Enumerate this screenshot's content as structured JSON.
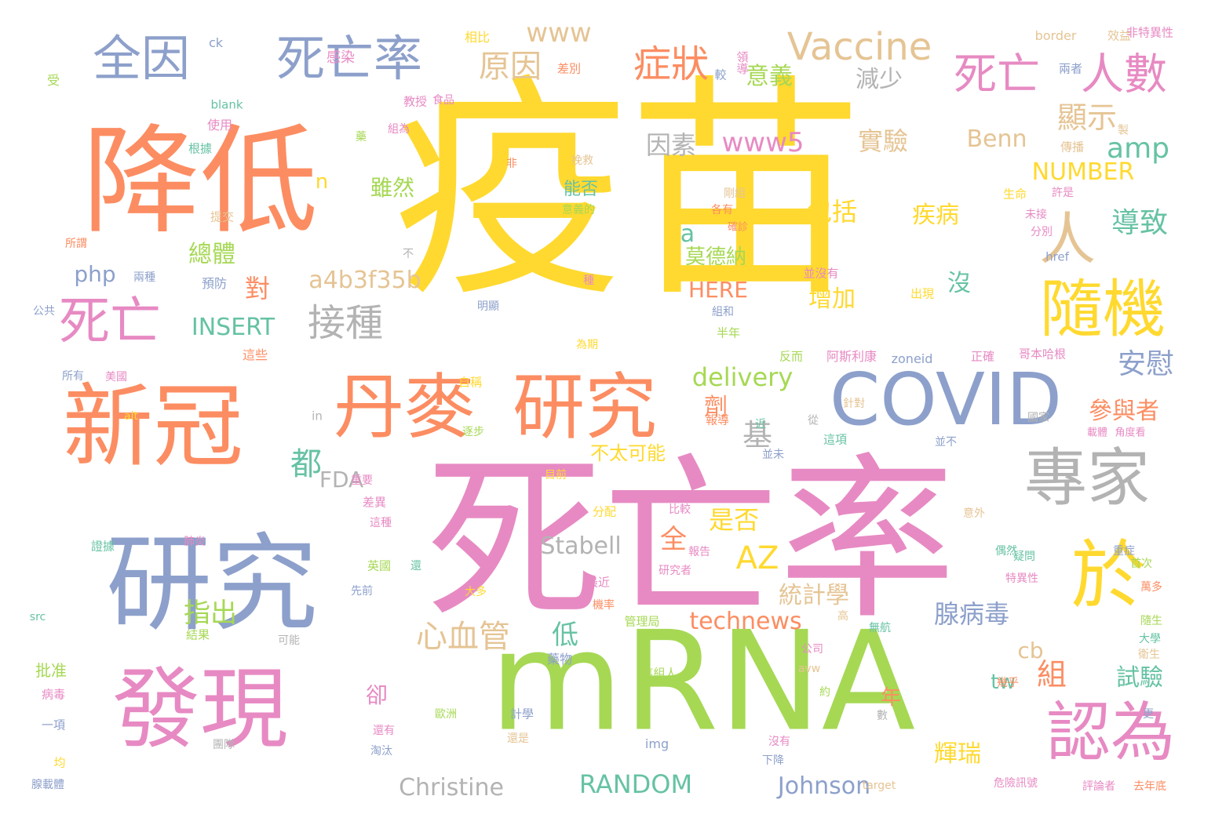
{
  "palette": {
    "yellow": "#FFD92F",
    "green": "#A6D854",
    "pink": "#E78AC3",
    "blue": "#8DA0CB",
    "orange": "#FC8D62",
    "teal": "#66C2A5",
    "tan": "#E5C494",
    "gray": "#B3B3B3"
  },
  "words": [
    {
      "text": "疫苗",
      "color": "yellow"
    },
    {
      "text": "死亡率",
      "color": "pink"
    },
    {
      "text": "mRNA",
      "color": "green"
    },
    {
      "text": "降低",
      "color": "orange"
    },
    {
      "text": "新冠",
      "color": "orange"
    },
    {
      "text": "研究",
      "color": "blue"
    },
    {
      "text": "發現",
      "color": "pink"
    },
    {
      "text": "丹麥",
      "color": "orange"
    },
    {
      "text": "研究",
      "color": "orange"
    },
    {
      "text": "COVID",
      "color": "blue"
    },
    {
      "text": "專家",
      "color": "gray"
    },
    {
      "text": "於",
      "color": "yellow"
    },
    {
      "text": "認為",
      "color": "pink"
    },
    {
      "text": "隨機",
      "color": "yellow"
    },
    {
      "text": "人",
      "color": "tan"
    },
    {
      "text": "全因",
      "color": "blue"
    },
    {
      "text": "死亡率",
      "color": "blue"
    },
    {
      "text": "死亡",
      "color": "pink"
    },
    {
      "text": "死亡",
      "color": "pink"
    },
    {
      "text": "人數",
      "color": "pink"
    },
    {
      "text": "Vaccine",
      "color": "tan"
    },
    {
      "text": "症狀",
      "color": "orange"
    },
    {
      "text": "原因",
      "color": "tan"
    },
    {
      "text": "www",
      "color": "tan"
    },
    {
      "text": "意義",
      "color": "green"
    },
    {
      "text": "減少",
      "color": "gray"
    },
    {
      "text": "顯示",
      "color": "tan"
    },
    {
      "text": "amp",
      "color": "teal"
    },
    {
      "text": "www5",
      "color": "pink"
    },
    {
      "text": "實驗",
      "color": "tan"
    },
    {
      "text": "因素",
      "color": "gray"
    },
    {
      "text": "Benn",
      "color": "tan"
    },
    {
      "text": "NUMBER",
      "color": "yellow"
    },
    {
      "text": "導致",
      "color": "teal"
    },
    {
      "text": "包括",
      "color": "yellow"
    },
    {
      "text": "疾病",
      "color": "yellow"
    },
    {
      "text": "增加",
      "color": "yellow"
    },
    {
      "text": "沒",
      "color": "teal"
    },
    {
      "text": "安慰",
      "color": "blue"
    },
    {
      "text": "參與者",
      "color": "orange"
    },
    {
      "text": "接種",
      "color": "gray"
    },
    {
      "text": "a4b3f35b",
      "color": "tan"
    },
    {
      "text": "對",
      "color": "orange"
    },
    {
      "text": "php",
      "color": "blue"
    },
    {
      "text": "INSERT",
      "color": "teal"
    },
    {
      "text": "總體",
      "color": "green"
    },
    {
      "text": "雖然",
      "color": "green"
    },
    {
      "text": "n",
      "color": "yellow"
    },
    {
      "text": "a",
      "color": "teal"
    },
    {
      "text": "莫德納",
      "color": "green"
    },
    {
      "text": "HERE",
      "color": "orange"
    },
    {
      "text": "delivery",
      "color": "green"
    },
    {
      "text": "劑",
      "color": "orange"
    },
    {
      "text": "基",
      "color": "gray"
    },
    {
      "text": "都",
      "color": "teal"
    },
    {
      "text": "FDA",
      "color": "gray"
    },
    {
      "text": "不太可能",
      "color": "yellow"
    },
    {
      "text": "是否",
      "color": "yellow"
    },
    {
      "text": "AZ",
      "color": "yellow"
    },
    {
      "text": "全",
      "color": "orange"
    },
    {
      "text": "Stabell",
      "color": "gray"
    },
    {
      "text": "統計學",
      "color": "tan"
    },
    {
      "text": "組",
      "color": "orange"
    },
    {
      "text": "腺病毒",
      "color": "blue"
    },
    {
      "text": "試驗",
      "color": "teal"
    },
    {
      "text": "cb",
      "color": "tan"
    },
    {
      "text": "tw",
      "color": "teal"
    },
    {
      "text": "心血管",
      "color": "tan"
    },
    {
      "text": "低",
      "color": "teal"
    },
    {
      "text": "指出",
      "color": "green"
    },
    {
      "text": "technews",
      "color": "orange"
    },
    {
      "text": "卻",
      "color": "pink"
    },
    {
      "text": "年",
      "color": "orange"
    },
    {
      "text": "輝瑞",
      "color": "yellow"
    },
    {
      "text": "Christine",
      "color": "gray"
    },
    {
      "text": "RANDOM",
      "color": "teal"
    },
    {
      "text": "Johnson",
      "color": "blue"
    },
    {
      "text": "能否",
      "color": "teal"
    },
    {
      "text": "ck",
      "color": "blue"
    },
    {
      "text": "感染",
      "color": "pink"
    },
    {
      "text": "受",
      "color": "green"
    },
    {
      "text": "相比",
      "color": "yellow"
    },
    {
      "text": "差別",
      "color": "orange"
    },
    {
      "text": "較",
      "color": "blue"
    },
    {
      "text": "領導",
      "color": "pink"
    },
    {
      "text": "效益",
      "color": "tan"
    },
    {
      "text": "border",
      "color": "tan"
    },
    {
      "text": "非特異性",
      "color": "pink"
    },
    {
      "text": "兩者",
      "color": "blue"
    },
    {
      "text": "blank",
      "color": "teal"
    },
    {
      "text": "教授",
      "color": "pink"
    },
    {
      "text": "食品",
      "color": "pink"
    },
    {
      "text": "使用",
      "color": "pink"
    },
    {
      "text": "組為",
      "color": "pink"
    },
    {
      "text": "根據",
      "color": "teal"
    },
    {
      "text": "藥",
      "color": "green"
    },
    {
      "text": "非",
      "color": "orange"
    },
    {
      "text": "傳播",
      "color": "tan"
    },
    {
      "text": "製",
      "color": "tan"
    },
    {
      "text": "挽救",
      "color": "tan"
    },
    {
      "text": "剛組",
      "color": "tan"
    },
    {
      "text": "生命",
      "color": "yellow"
    },
    {
      "text": "許是",
      "color": "pink"
    },
    {
      "text": "提交",
      "color": "tan"
    },
    {
      "text": "各有",
      "color": "orange"
    },
    {
      "text": "意義的",
      "color": "green"
    },
    {
      "text": "未接",
      "color": "pink"
    },
    {
      "text": "分別",
      "color": "pink"
    },
    {
      "text": "所謂",
      "color": "orange"
    },
    {
      "text": "不",
      "color": "gray"
    },
    {
      "text": "確診",
      "color": "orange"
    },
    {
      "text": "href",
      "color": "blue"
    },
    {
      "text": "兩種",
      "color": "blue"
    },
    {
      "text": "預防",
      "color": "blue"
    },
    {
      "text": "並沒有",
      "color": "pink"
    },
    {
      "text": "種",
      "color": "pink"
    },
    {
      "text": "出現",
      "color": "yellow"
    },
    {
      "text": "公共",
      "color": "blue"
    },
    {
      "text": "明顯",
      "color": "blue"
    },
    {
      "text": "組和",
      "color": "blue"
    },
    {
      "text": "為期",
      "color": "yellow"
    },
    {
      "text": "半年",
      "color": "green"
    },
    {
      "text": "這些",
      "color": "orange"
    },
    {
      "text": "反而",
      "color": "green"
    },
    {
      "text": "阿斯利康",
      "color": "pink"
    },
    {
      "text": "zoneid",
      "color": "blue"
    },
    {
      "text": "正確",
      "color": "pink"
    },
    {
      "text": "哥本哈根",
      "color": "pink"
    },
    {
      "text": "所有",
      "color": "blue"
    },
    {
      "text": "美國",
      "color": "pink"
    },
    {
      "text": "自稱",
      "color": "yellow"
    },
    {
      "text": "in",
      "color": "gray"
    },
    {
      "text": "針對",
      "color": "tan"
    },
    {
      "text": "alt",
      "color": "yellow"
    },
    {
      "text": "逐步",
      "color": "green"
    },
    {
      "text": "從",
      "color": "gray"
    },
    {
      "text": "報導",
      "color": "orange"
    },
    {
      "text": "近",
      "color": "teal"
    },
    {
      "text": "這項",
      "color": "teal"
    },
    {
      "text": "並未",
      "color": "blue"
    },
    {
      "text": "並不",
      "color": "blue"
    },
    {
      "text": "國家",
      "color": "gray"
    },
    {
      "text": "載體",
      "color": "pink"
    },
    {
      "text": "角度看",
      "color": "pink"
    },
    {
      "text": "重要",
      "color": "pink"
    },
    {
      "text": "差異",
      "color": "pink"
    },
    {
      "text": "目前",
      "color": "yellow"
    },
    {
      "text": "這種",
      "color": "pink"
    },
    {
      "text": "分配",
      "color": "yellow"
    },
    {
      "text": "比較",
      "color": "pink"
    },
    {
      "text": "意外",
      "color": "tan"
    },
    {
      "text": "證據",
      "color": "teal"
    },
    {
      "text": "肺炎",
      "color": "pink"
    },
    {
      "text": "報告",
      "color": "pink"
    },
    {
      "text": "偶然",
      "color": "teal"
    },
    {
      "text": "重症",
      "color": "blue"
    },
    {
      "text": "英國",
      "color": "green"
    },
    {
      "text": "還",
      "color": "teal"
    },
    {
      "text": "研究者",
      "color": "pink"
    },
    {
      "text": "疑問",
      "color": "teal"
    },
    {
      "text": "首次",
      "color": "green"
    },
    {
      "text": "先前",
      "color": "blue"
    },
    {
      "text": "大多",
      "color": "yellow"
    },
    {
      "text": "最近",
      "color": "pink"
    },
    {
      "text": "特異性",
      "color": "pink"
    },
    {
      "text": "萬多",
      "color": "orange"
    },
    {
      "text": "機率",
      "color": "orange"
    },
    {
      "text": "src",
      "color": "teal"
    },
    {
      "text": "結果",
      "color": "green"
    },
    {
      "text": "可能",
      "color": "gray"
    },
    {
      "text": "管理局",
      "color": "green"
    },
    {
      "text": "高",
      "color": "tan"
    },
    {
      "text": "無航",
      "color": "teal"
    },
    {
      "text": "隨生",
      "color": "green"
    },
    {
      "text": "公司",
      "color": "pink"
    },
    {
      "text": "衛生",
      "color": "tan"
    },
    {
      "text": "大學",
      "color": "teal"
    },
    {
      "text": "批准",
      "color": "green"
    },
    {
      "text": "藥物",
      "color": "blue"
    },
    {
      "text": "這組人",
      "color": "green"
    },
    {
      "text": "avw",
      "color": "tan"
    },
    {
      "text": "幾乎",
      "color": "orange"
    },
    {
      "text": "病毒",
      "color": "pink"
    },
    {
      "text": "約",
      "color": "green"
    },
    {
      "text": "歐洲",
      "color": "green"
    },
    {
      "text": "計學",
      "color": "blue"
    },
    {
      "text": "更",
      "color": "blue"
    },
    {
      "text": "一項",
      "color": "blue"
    },
    {
      "text": "還有",
      "color": "pink"
    },
    {
      "text": "數",
      "color": "gray"
    },
    {
      "text": "還是",
      "color": "tan"
    },
    {
      "text": "淘汰",
      "color": "blue"
    },
    {
      "text": "團隊",
      "color": "gray"
    },
    {
      "text": "img",
      "color": "blue"
    },
    {
      "text": "沒有",
      "color": "pink"
    },
    {
      "text": "均",
      "color": "yellow"
    },
    {
      "text": "下降",
      "color": "blue"
    },
    {
      "text": "腺載體",
      "color": "blue"
    },
    {
      "text": "target",
      "color": "tan"
    },
    {
      "text": "危險訊號",
      "color": "pink"
    },
    {
      "text": "評論者",
      "color": "pink"
    },
    {
      "text": "去年底",
      "color": "orange"
    }
  ]
}
